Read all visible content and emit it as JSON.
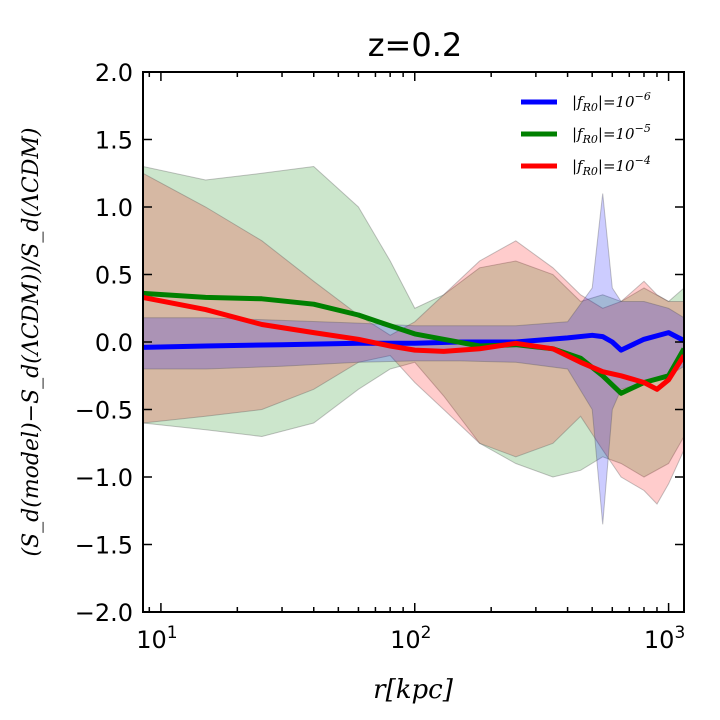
{
  "chart_data": {
    "type": "line",
    "title": "z=0.2",
    "xlabel": "r[kpc]",
    "ylabel": "(S_d(model)−S_d(ΛCDM))/S_d(ΛCDM)",
    "xscale": "log",
    "xlim": [
      8.5,
      1150
    ],
    "ylim": [
      -2.0,
      2.0
    ],
    "x_ticks": [
      {
        "value": 10,
        "base": "10",
        "exp": "1"
      },
      {
        "value": 100,
        "base": "10",
        "exp": "2"
      },
      {
        "value": 1000,
        "base": "10",
        "exp": "3"
      }
    ],
    "y_ticks": [
      {
        "value": 2.0,
        "label": "2.0"
      },
      {
        "value": 1.5,
        "label": "1.5"
      },
      {
        "value": 1.0,
        "label": "1.0"
      },
      {
        "value": 0.5,
        "label": "0.5"
      },
      {
        "value": 0.0,
        "label": "0.0"
      },
      {
        "value": -0.5,
        "label": "−0.5"
      },
      {
        "value": -1.0,
        "label": "−1.0"
      },
      {
        "value": -1.5,
        "label": "−1.5"
      },
      {
        "value": -2.0,
        "label": "−2.0"
      }
    ],
    "legend_position": "top-right",
    "series": [
      {
        "name": "|f_R0|=10^-6",
        "legend_main": "|f",
        "legend_sub": "R0",
        "legend_mid": "|=10",
        "legend_exp": "−6",
        "color": "#0000ff",
        "x": [
          8.5,
          15,
          30,
          60,
          100,
          150,
          250,
          400,
          500,
          550,
          600,
          650,
          800,
          1000,
          1150
        ],
        "y": [
          -0.04,
          -0.03,
          -0.02,
          -0.01,
          -0.01,
          0.0,
          0.0,
          0.03,
          0.05,
          0.04,
          0.0,
          -0.06,
          0.02,
          0.07,
          0.01
        ],
        "band_upper": [
          0.18,
          0.18,
          0.16,
          0.14,
          0.12,
          0.12,
          0.12,
          0.15,
          0.4,
          1.1,
          0.4,
          0.3,
          0.3,
          0.25,
          0.18
        ],
        "band_lower": [
          -0.2,
          -0.2,
          -0.18,
          -0.15,
          -0.14,
          -0.14,
          -0.15,
          -0.2,
          -0.5,
          -1.35,
          -0.5,
          -0.35,
          -0.3,
          -0.25,
          -0.18
        ]
      },
      {
        "name": "|f_R0|=10^-5",
        "legend_main": "|f",
        "legend_sub": "R0",
        "legend_mid": "|=10",
        "legend_exp": "−5",
        "color": "#008000",
        "x": [
          8.5,
          15,
          25,
          40,
          60,
          80,
          100,
          130,
          180,
          250,
          350,
          450,
          550,
          650,
          800,
          1000,
          1150
        ],
        "y": [
          0.36,
          0.33,
          0.32,
          0.28,
          0.2,
          0.12,
          0.06,
          0.02,
          -0.03,
          -0.02,
          -0.05,
          -0.12,
          -0.25,
          -0.38,
          -0.3,
          -0.25,
          -0.05
        ],
        "band_upper": [
          1.3,
          1.2,
          1.25,
          1.3,
          1.0,
          0.6,
          0.25,
          0.35,
          0.55,
          0.6,
          0.5,
          0.3,
          0.35,
          0.3,
          0.4,
          0.3,
          0.4
        ],
        "band_lower": [
          -0.6,
          -0.65,
          -0.7,
          -0.6,
          -0.35,
          -0.2,
          -0.15,
          -0.4,
          -0.75,
          -0.9,
          -1.0,
          -0.95,
          -0.85,
          -0.9,
          -1.0,
          -0.9,
          -0.7
        ]
      },
      {
        "name": "|f_R0|=10^-4",
        "legend_main": "|f",
        "legend_sub": "R0",
        "legend_mid": "|=10",
        "legend_exp": "−4",
        "color": "#ff0000",
        "x": [
          8.5,
          15,
          25,
          40,
          60,
          80,
          100,
          130,
          180,
          250,
          350,
          450,
          550,
          650,
          800,
          900,
          1000,
          1150
        ],
        "y": [
          0.33,
          0.24,
          0.13,
          0.07,
          0.02,
          -0.03,
          -0.06,
          -0.07,
          -0.05,
          -0.01,
          -0.05,
          -0.15,
          -0.22,
          -0.25,
          -0.3,
          -0.35,
          -0.28,
          -0.1
        ],
        "band_upper": [
          1.25,
          1.0,
          0.75,
          0.45,
          0.2,
          0.05,
          0.15,
          0.35,
          0.6,
          0.75,
          0.55,
          0.35,
          0.25,
          0.3,
          0.45,
          0.35,
          0.3,
          0.3
        ],
        "band_lower": [
          -0.6,
          -0.55,
          -0.5,
          -0.35,
          -0.15,
          -0.1,
          -0.3,
          -0.5,
          -0.75,
          -0.85,
          -0.75,
          -0.55,
          -0.8,
          -1.0,
          -1.1,
          -1.2,
          -1.05,
          -0.8
        ]
      }
    ]
  }
}
